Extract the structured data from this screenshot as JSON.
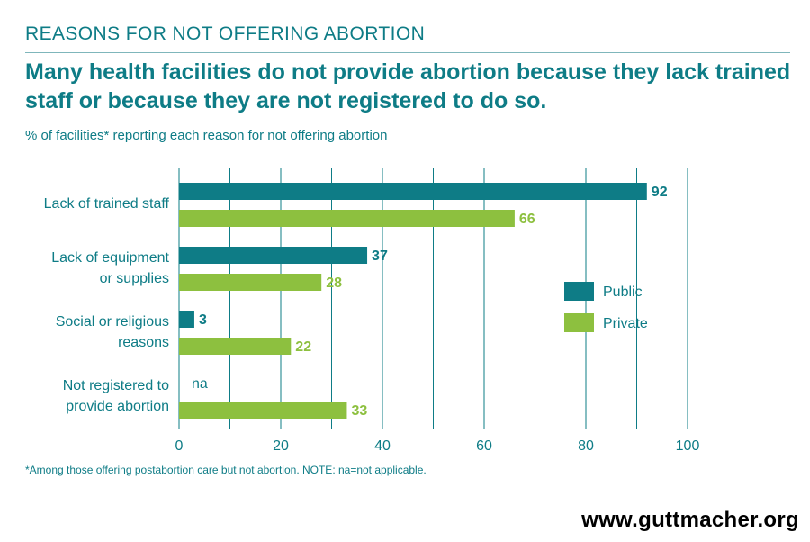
{
  "header": {
    "kicker": "REASONS FOR NOT OFFERING ABORTION",
    "headline": "Many health facilities do not provide abortion because they lack trained staff or because they are not registered to do so.",
    "subtitle": "% of facilities* reporting each reason for not offering abortion"
  },
  "footer": {
    "footnote": "*Among those offering postabortion care but not abortion. NOTE: na=not applicable.",
    "brand": "www.guttmacher.org"
  },
  "colors": {
    "teal": "#0e7c86",
    "green": "#8dc03f",
    "grid": "#0e7c86"
  },
  "chart_data": {
    "type": "bar",
    "orientation": "horizontal",
    "categories": [
      [
        "Lack of trained staff"
      ],
      [
        "Lack of equipment",
        "or supplies"
      ],
      [
        "Social or religious",
        "reasons"
      ],
      [
        "Not registered to",
        "provide abortion"
      ]
    ],
    "series": [
      {
        "name": "Public",
        "values": [
          92,
          37,
          3,
          null
        ],
        "labels": [
          "92",
          "37",
          "3",
          "na"
        ]
      },
      {
        "name": "Private",
        "values": [
          66,
          28,
          22,
          33
        ],
        "labels": [
          "66",
          "28",
          "22",
          "33"
        ]
      }
    ],
    "xlim": [
      0,
      100
    ],
    "ticks": [
      0,
      20,
      40,
      60,
      80,
      100
    ],
    "grid": true,
    "legend_position": "right"
  }
}
